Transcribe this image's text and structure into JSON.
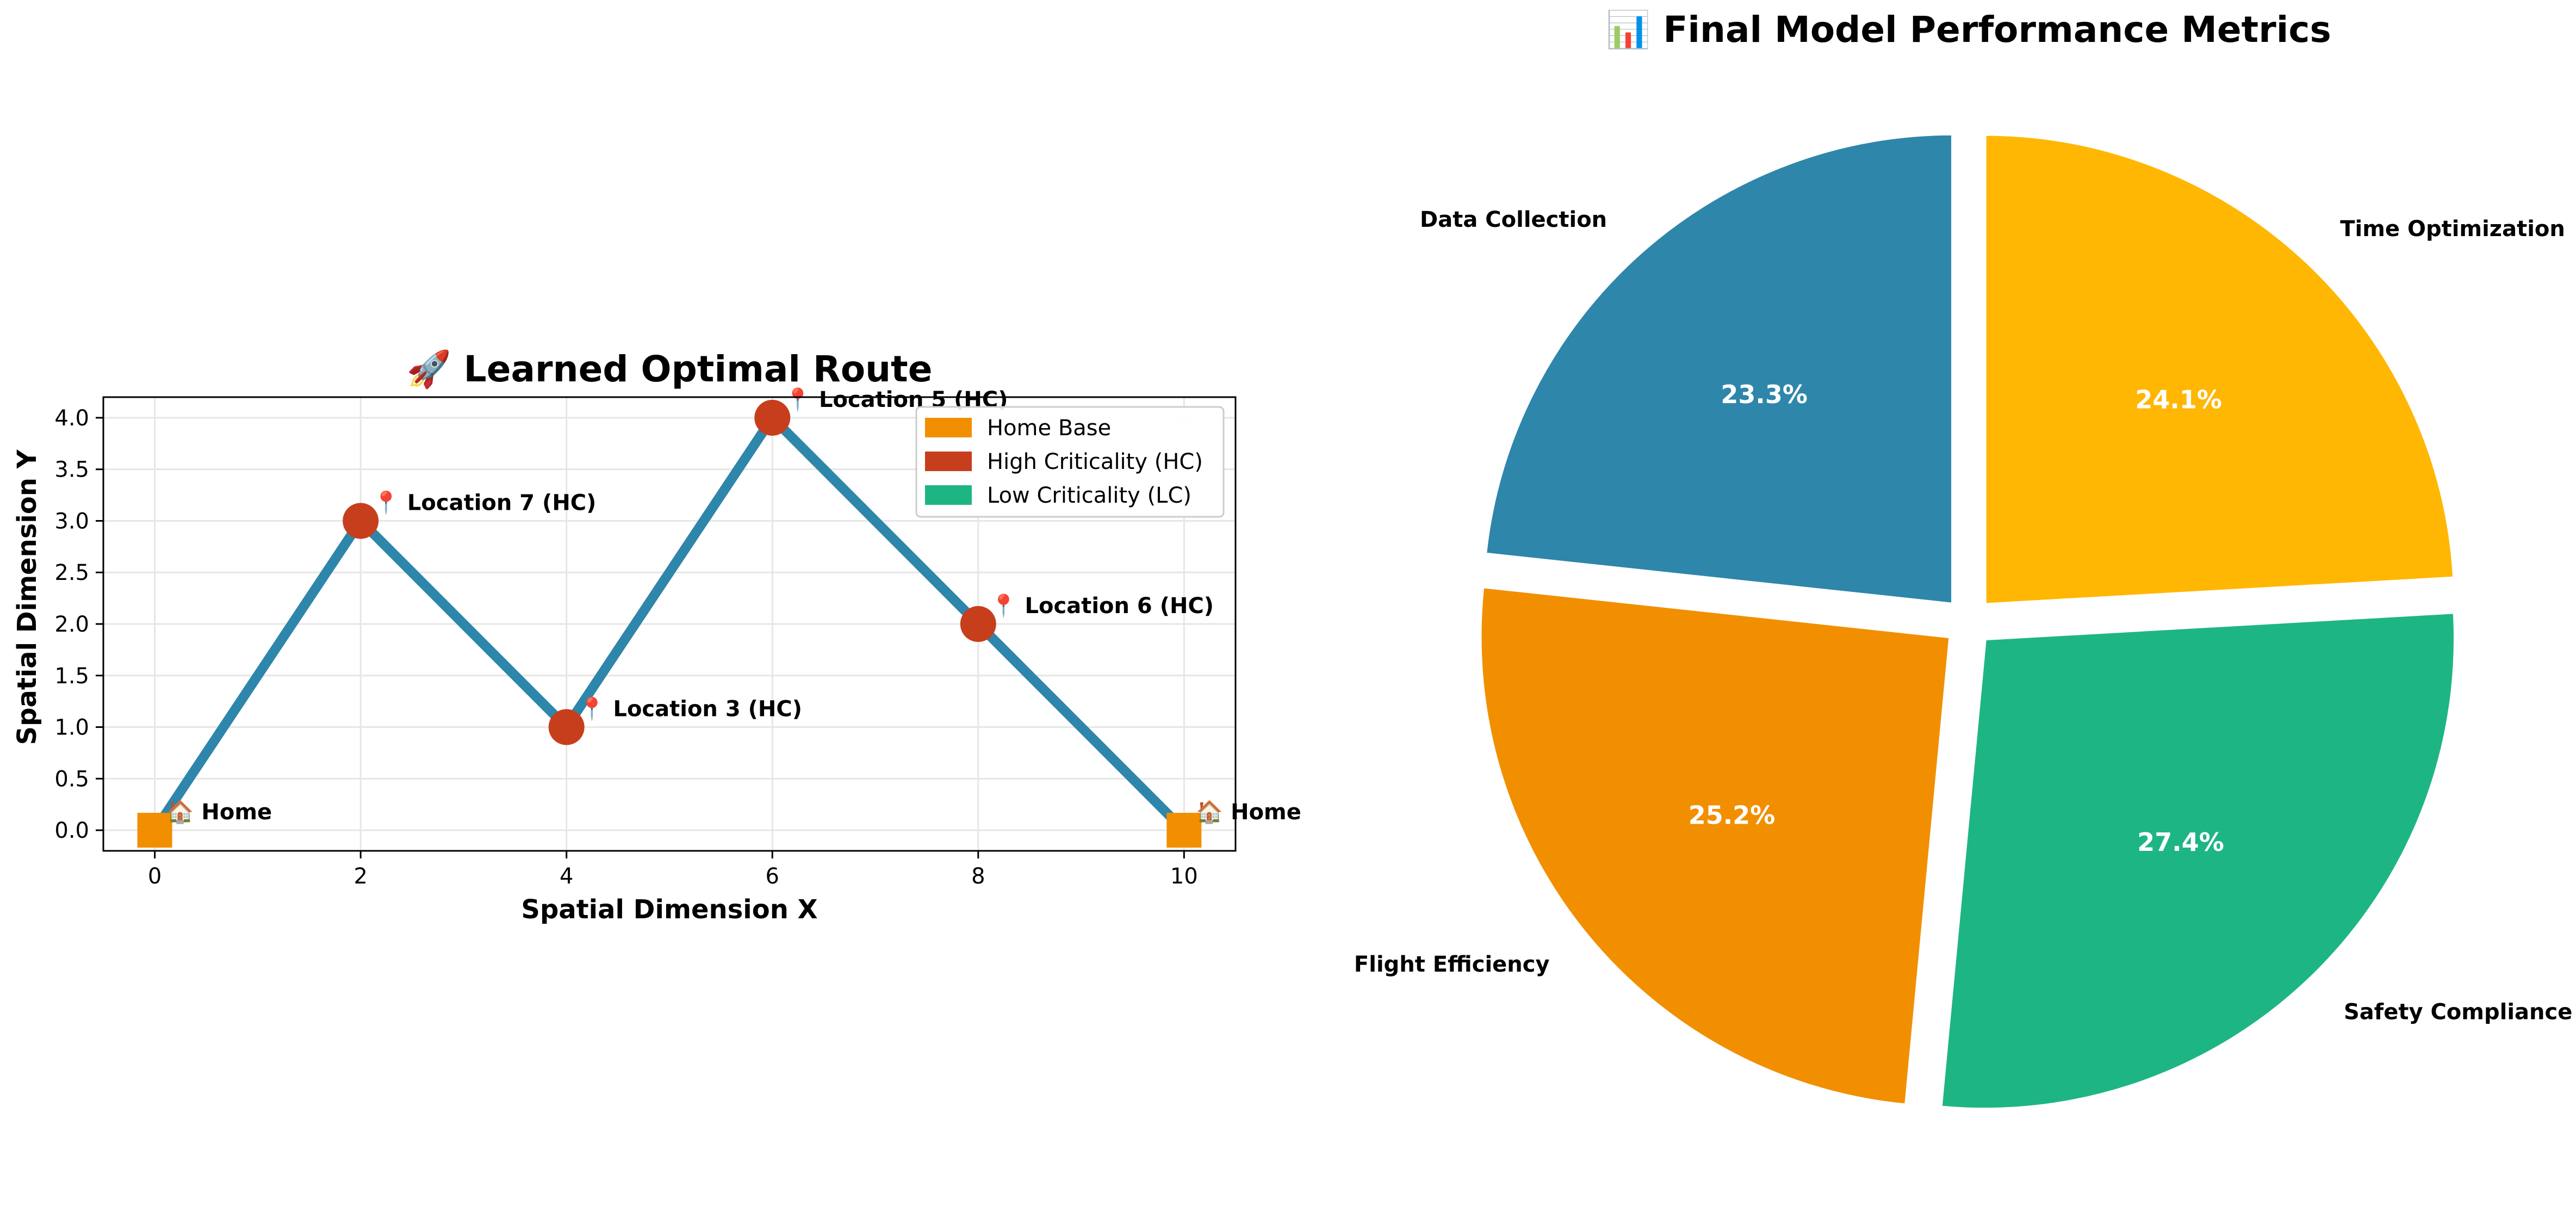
{
  "colors": {
    "route": "#2E86AB",
    "home": "#F18F01",
    "high_criticality": "#C73E1D",
    "low_criticality": "#1EB584",
    "grid": "#e6e6e6"
  },
  "chart_data": [
    {
      "type": "line",
      "title": "🚀 Learned Optimal Route",
      "xlabel": "Spatial Dimension X",
      "ylabel": "Spatial Dimension Y",
      "xlim": [
        -0.5,
        10.5
      ],
      "ylim": [
        -0.2,
        4.2
      ],
      "xticks": [
        "0",
        "2",
        "4",
        "6",
        "8",
        "10"
      ],
      "yticks": [
        "0.0",
        "0.5",
        "1.0",
        "1.5",
        "2.0",
        "2.5",
        "3.0",
        "3.5",
        "4.0"
      ],
      "grid": true,
      "legend_position": "top-right",
      "route": {
        "x": [
          0,
          2,
          4,
          6,
          8,
          10
        ],
        "y": [
          0,
          3,
          1,
          4,
          2,
          0
        ]
      },
      "points": [
        {
          "x": 0,
          "y": 0,
          "kind": "home",
          "label": "🏠 Home"
        },
        {
          "x": 2,
          "y": 3,
          "kind": "high",
          "label": "📍 Location 7 (HC)"
        },
        {
          "x": 4,
          "y": 1,
          "kind": "high",
          "label": "📍 Location 3 (HC)"
        },
        {
          "x": 6,
          "y": 4,
          "kind": "high",
          "label": "📍 Location 5 (HC)"
        },
        {
          "x": 8,
          "y": 2,
          "kind": "high",
          "label": "📍 Location 6 (HC)"
        },
        {
          "x": 10,
          "y": 0,
          "kind": "home",
          "label": "🏠 Home"
        }
      ],
      "legend": [
        {
          "label": "Home Base",
          "kind": "home"
        },
        {
          "label": "High Criticality (HC)",
          "kind": "high"
        },
        {
          "label": "Low Criticality (LC)",
          "kind": "low"
        }
      ]
    },
    {
      "type": "pie",
      "title": "📊 Final Model Performance Metrics",
      "start_angle_deg": 90,
      "direction": "counterclockwise",
      "slices": [
        {
          "label": "Data Collection",
          "value": 23.3,
          "pct_text": "23.3%",
          "color": "#2E86AB"
        },
        {
          "label": "Flight Efficiency",
          "value": 25.2,
          "pct_text": "25.2%",
          "color": "#F18F01"
        },
        {
          "label": "Safety Compliance",
          "value": 27.4,
          "pct_text": "27.4%",
          "color": "#1EB584"
        },
        {
          "label": "Time Optimization",
          "value": 24.1,
          "pct_text": "24.1%",
          "color": "#FFB703"
        }
      ]
    }
  ]
}
